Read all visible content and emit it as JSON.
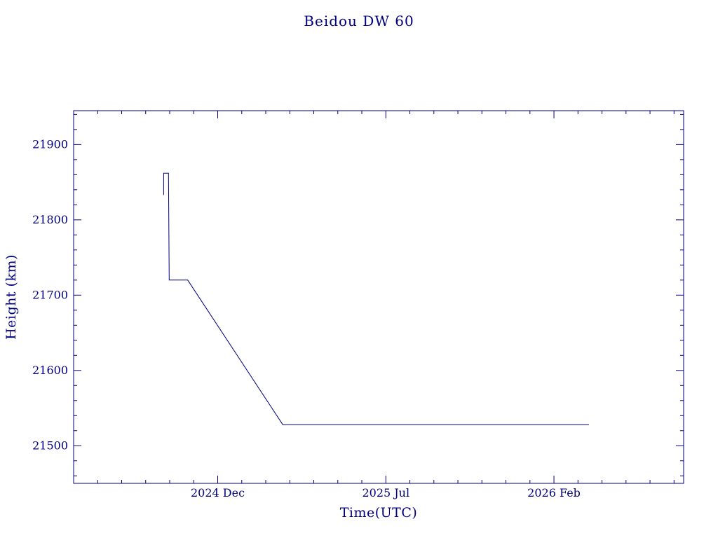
{
  "page": {
    "background": "#ffffff",
    "accent": "#000080"
  },
  "chart_data": {
    "type": "line",
    "title": "Beidou DW 60",
    "xlabel": "Time(UTC)",
    "ylabel": "Height (km)",
    "x_unit": "months since 2024-06-01",
    "xlim": [
      0,
      25.4
    ],
    "ylim": [
      21450,
      21945
    ],
    "x_ticks": [
      {
        "pos": 6,
        "label": "2024 Dec"
      },
      {
        "pos": 13,
        "label": "2025 Jul"
      },
      {
        "pos": 20,
        "label": "2026 Feb"
      }
    ],
    "x_minor_step": 1,
    "y_ticks": [
      21500,
      21600,
      21700,
      21800,
      21900
    ],
    "y_minor_step": 20,
    "grid": false,
    "legend": null,
    "line_color": "#000080",
    "series": [
      {
        "name": "Beidou DW 60 height",
        "points_months": [
          [
            3.75,
            21833
          ],
          [
            3.75,
            21862
          ],
          [
            3.95,
            21862
          ],
          [
            3.98,
            21720
          ],
          [
            4.75,
            21720
          ],
          [
            8.71,
            21528
          ],
          [
            21.46,
            21528
          ]
        ],
        "points_dates": [
          [
            "2024-09-23",
            21833
          ],
          [
            "2024-09-23",
            21862
          ],
          [
            "2024-09-29",
            21862
          ],
          [
            "2024-09-30",
            21720
          ],
          [
            "2024-10-23",
            21720
          ],
          [
            "2025-02-22",
            21528
          ],
          [
            "2026-03-15",
            21528
          ]
        ]
      }
    ]
  }
}
